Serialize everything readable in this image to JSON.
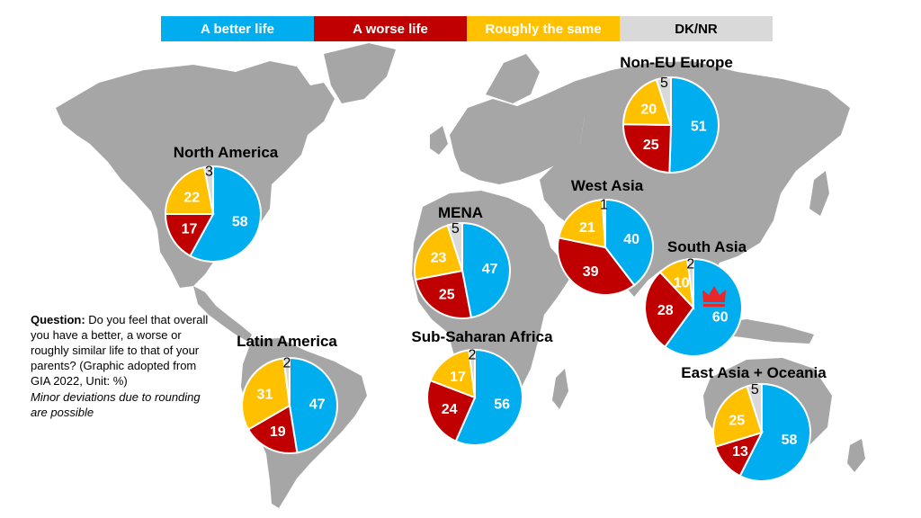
{
  "legend": [
    {
      "label": "A better life",
      "color": "#00aeef",
      "text_color": "#ffffff"
    },
    {
      "label": "A worse life",
      "color": "#c00000",
      "text_color": "#ffffff"
    },
    {
      "label": "Roughly the same",
      "color": "#ffc000",
      "text_color": "#ffffff"
    },
    {
      "label": "DK/NR",
      "color": "#d9d9d9",
      "text_color": "#000000"
    }
  ],
  "question": {
    "label": "Question:",
    "text": "Do you feel that overall you have a better, a worse or roughly similar life to that of your parents? (Graphic adopted from GIA 2022, Unit: %)",
    "note": "Minor deviations due to rounding are possible"
  },
  "colors": {
    "better": "#00aeef",
    "worse": "#c00000",
    "same": "#ffc000",
    "dknr": "#d9d9d9",
    "map": "#a6a6a6",
    "crown": "#e8272b"
  },
  "chart_data": {
    "type": "pie",
    "series_names": [
      "A better life",
      "A worse life",
      "Roughly the same",
      "DK/NR"
    ],
    "regions": [
      {
        "name": "North America",
        "values": [
          58,
          17,
          22,
          3
        ]
      },
      {
        "name": "Latin America",
        "values": [
          47,
          19,
          31,
          2
        ]
      },
      {
        "name": "MENA",
        "values": [
          47,
          25,
          23,
          5
        ]
      },
      {
        "name": "Sub-Saharan Africa",
        "values": [
          56,
          24,
          17,
          2
        ]
      },
      {
        "name": "Non-EU Europe",
        "values": [
          51,
          25,
          20,
          5
        ]
      },
      {
        "name": "West Asia",
        "values": [
          40,
          39,
          21,
          1
        ]
      },
      {
        "name": "South Asia",
        "values": [
          60,
          28,
          10,
          2
        ],
        "highlight": "crown-icon"
      },
      {
        "name": "East Asia + Oceania",
        "values": [
          58,
          13,
          25,
          5
        ]
      }
    ]
  }
}
